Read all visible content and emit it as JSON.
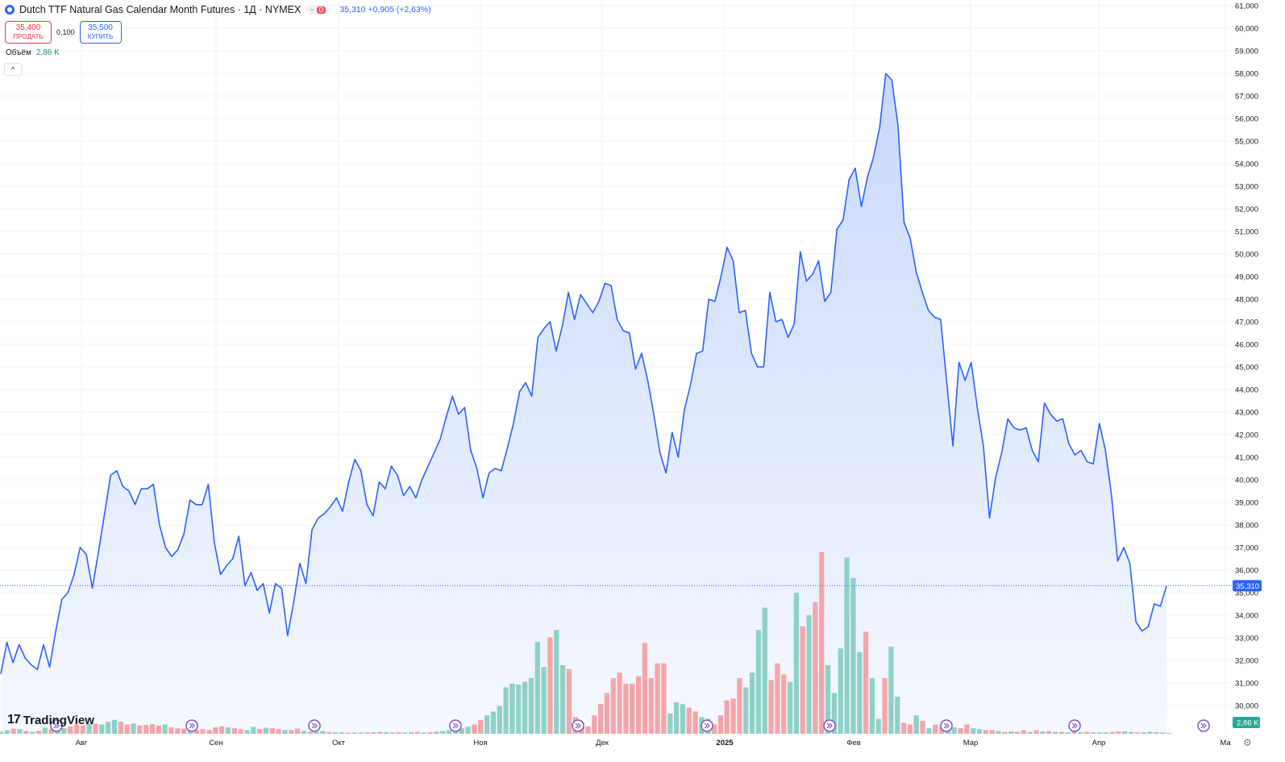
{
  "header": {
    "title": "Dutch TTF Natural Gas Calendar Month Futures · 1Д · NYMEX",
    "pill_label": "D",
    "last_info": "35,310 +0,905 (+2,63%)",
    "sell_price": "35,400",
    "sell_label": "ПРОДАТЬ",
    "spread": "0,100",
    "buy_price": "35,500",
    "buy_label": "КУПИТЬ",
    "volume_label": "Объём",
    "volume_value": "2,86 K",
    "collapse_icon": "chevron-up-icon",
    "logo_text": "TradingView",
    "logo_mark": "17"
  },
  "colors": {
    "line": "#2962ff",
    "area_top": "#c9d8fc",
    "area_bottom": "#f5f8ff",
    "vol_up": "#8fd0c6",
    "vol_down": "#f3a6aa",
    "grid": "#f0f3fa",
    "axis_text": "#131722",
    "price_label_bg": "#2962ff",
    "volume_label_bg": "#22ab94"
  },
  "chart_data": {
    "type": "area",
    "y_axis": {
      "min": 29,
      "max": 61,
      "ticks": [
        "30,000",
        "31,000",
        "32,000",
        "33,000",
        "34,000",
        "35,000",
        "36,000",
        "37,000",
        "38,000",
        "39,000",
        "40,000",
        "41,000",
        "42,000",
        "43,000",
        "44,000",
        "45,000",
        "46,000",
        "47,000",
        "48,000",
        "49,000",
        "50,000",
        "51,000",
        "52,000",
        "53,000",
        "54,000",
        "55,000",
        "56,000",
        "57,000",
        "58,000",
        "59,000",
        "60,000",
        "61,000"
      ]
    },
    "x_labels": [
      "Авг",
      "Сен",
      "Окт",
      "Ноя",
      "Дек",
      "2025",
      "Фев",
      "Мар",
      "Апр",
      "Ма"
    ],
    "current_price_label": "35,310",
    "current_volume_label": "2,86 K",
    "current_price": 35.31,
    "grid": true,
    "series": [
      {
        "values": [
          31.4,
          32.8,
          31.9,
          32.7,
          32.1,
          31.8,
          31.6,
          32.7,
          31.7,
          33.3,
          34.7,
          35.0,
          35.8,
          37.0,
          36.7,
          35.2,
          36.8,
          38.5,
          40.2,
          40.4,
          39.7,
          39.5,
          38.9,
          39.6,
          39.6,
          39.8,
          38.0,
          37.0,
          36.6,
          36.9,
          37.6,
          39.1,
          38.9,
          38.9,
          39.8,
          37.2,
          35.8,
          36.2,
          36.5,
          37.5,
          35.3,
          35.9,
          35.1,
          35.4,
          34.1,
          35.4,
          35.2,
          33.1,
          34.6,
          36.3,
          35.4,
          37.8,
          38.3,
          38.5,
          38.8,
          39.2,
          38.6,
          39.9,
          40.9,
          40.4,
          38.9,
          38.4,
          39.9,
          39.6,
          40.6,
          40.2,
          39.3,
          39.7,
          39.2,
          40.0,
          40.6,
          41.2,
          41.8,
          42.8,
          43.7,
          42.9,
          43.2,
          41.3,
          40.5,
          39.2,
          40.3,
          40.5,
          40.4,
          41.4,
          42.5,
          43.9,
          44.3,
          43.7,
          46.3,
          46.7,
          47.0,
          45.7,
          46.8,
          48.3,
          47.1,
          48.2,
          47.8,
          47.4,
          47.9,
          48.7,
          48.6,
          47.1,
          46.6,
          46.5,
          44.9,
          45.6,
          44.4,
          42.9,
          41.2,
          40.3,
          42.1,
          41.0,
          43.1,
          44.2,
          45.6,
          45.7,
          48.0,
          47.9,
          49.0,
          50.3,
          49.7,
          47.4,
          47.5,
          45.6,
          45.0,
          45.0,
          48.3,
          47.0,
          47.1,
          46.3,
          46.9,
          50.1,
          48.8,
          49.1,
          49.7,
          47.9,
          48.3,
          51.1,
          51.5,
          53.3,
          53.8,
          52.1,
          53.4,
          54.3,
          55.6,
          58.0,
          57.7,
          55.7,
          51.4,
          50.7,
          49.2,
          48.3,
          47.5,
          47.2,
          47.1,
          44.3,
          41.5,
          45.2,
          44.4,
          45.2,
          43.2,
          41.5,
          38.3,
          40.1,
          41.2,
          42.7,
          42.3,
          42.2,
          42.3,
          41.3,
          40.8,
          43.4,
          42.9,
          42.6,
          42.7,
          41.6,
          41.1,
          41.3,
          40.8,
          40.7,
          42.5,
          41.3,
          39.3,
          36.4,
          37.0,
          36.3,
          33.7,
          33.3,
          33.5,
          34.5,
          34.4,
          35.3
        ]
      }
    ],
    "volume": [
      {
        "v": 1.2,
        "d": 0
      },
      {
        "v": 2.0,
        "d": 0
      },
      {
        "v": 2.8,
        "d": 1
      },
      {
        "v": 2.5,
        "d": 0
      },
      {
        "v": 1.5,
        "d": 1
      },
      {
        "v": 1.0,
        "d": 0
      },
      {
        "v": 1.6,
        "d": 1
      },
      {
        "v": 3.3,
        "d": 0
      },
      {
        "v": 2.7,
        "d": 1
      },
      {
        "v": 2.0,
        "d": 0
      },
      {
        "v": 3.0,
        "d": 0
      },
      {
        "v": 4.0,
        "d": 1
      },
      {
        "v": 5.0,
        "d": 1
      },
      {
        "v": 4.5,
        "d": 1
      },
      {
        "v": 5.5,
        "d": 0
      },
      {
        "v": 5.5,
        "d": 1
      },
      {
        "v": 5.0,
        "d": 0
      },
      {
        "v": 6.5,
        "d": 0
      },
      {
        "v": 7.5,
        "d": 0
      },
      {
        "v": 6.5,
        "d": 1
      },
      {
        "v": 5.0,
        "d": 1
      },
      {
        "v": 5.5,
        "d": 0
      },
      {
        "v": 4.5,
        "d": 1
      },
      {
        "v": 4.8,
        "d": 1
      },
      {
        "v": 5.2,
        "d": 1
      },
      {
        "v": 4.5,
        "d": 1
      },
      {
        "v": 5.0,
        "d": 0
      },
      {
        "v": 3.5,
        "d": 1
      },
      {
        "v": 3.0,
        "d": 1
      },
      {
        "v": 2.8,
        "d": 1
      },
      {
        "v": 3.0,
        "d": 0
      },
      {
        "v": 2.0,
        "d": 1
      },
      {
        "v": 2.5,
        "d": 1
      },
      {
        "v": 2.0,
        "d": 1
      },
      {
        "v": 3.5,
        "d": 1
      },
      {
        "v": 4.0,
        "d": 1
      },
      {
        "v": 3.5,
        "d": 0
      },
      {
        "v": 3.0,
        "d": 1
      },
      {
        "v": 2.5,
        "d": 1
      },
      {
        "v": 2.0,
        "d": 0
      },
      {
        "v": 3.8,
        "d": 0
      },
      {
        "v": 2.5,
        "d": 1
      },
      {
        "v": 3.3,
        "d": 0
      },
      {
        "v": 3.0,
        "d": 1
      },
      {
        "v": 2.5,
        "d": 1
      },
      {
        "v": 2.0,
        "d": 0
      },
      {
        "v": 2.0,
        "d": 1
      },
      {
        "v": 2.8,
        "d": 1
      },
      {
        "v": 1.5,
        "d": 0
      },
      {
        "v": 1.2,
        "d": 1
      },
      {
        "v": 1.0,
        "d": 0
      },
      {
        "v": 1.5,
        "d": 0
      },
      {
        "v": 1.0,
        "d": 1
      },
      {
        "v": 0.8,
        "d": 0
      },
      {
        "v": 0.8,
        "d": 0
      },
      {
        "v": 0.6,
        "d": 1
      },
      {
        "v": 0.7,
        "d": 0
      },
      {
        "v": 0.7,
        "d": 0
      },
      {
        "v": 0.8,
        "d": 1
      },
      {
        "v": 0.8,
        "d": 0
      },
      {
        "v": 1.0,
        "d": 1
      },
      {
        "v": 0.9,
        "d": 0
      },
      {
        "v": 0.7,
        "d": 0
      },
      {
        "v": 0.8,
        "d": 1
      },
      {
        "v": 0.7,
        "d": 0
      },
      {
        "v": 0.9,
        "d": 1
      },
      {
        "v": 1.0,
        "d": 1
      },
      {
        "v": 0.7,
        "d": 0
      },
      {
        "v": 0.8,
        "d": 1
      },
      {
        "v": 1.2,
        "d": 0
      },
      {
        "v": 1.4,
        "d": 0
      },
      {
        "v": 2.0,
        "d": 0
      },
      {
        "v": 2.4,
        "d": 0
      },
      {
        "v": 3.0,
        "d": 0
      },
      {
        "v": 3.8,
        "d": 0
      },
      {
        "v": 5.0,
        "d": 1
      },
      {
        "v": 7.5,
        "d": 1
      },
      {
        "v": 10.0,
        "d": 0
      },
      {
        "v": 12.0,
        "d": 0
      },
      {
        "v": 15.0,
        "d": 0
      },
      {
        "v": 25.0,
        "d": 0
      },
      {
        "v": 27.0,
        "d": 0
      },
      {
        "v": 26.5,
        "d": 0
      },
      {
        "v": 28.0,
        "d": 0
      },
      {
        "v": 30.0,
        "d": 0
      },
      {
        "v": 49.5,
        "d": 0
      },
      {
        "v": 36.0,
        "d": 0
      },
      {
        "v": 52.0,
        "d": 1
      },
      {
        "v": 56.0,
        "d": 0
      },
      {
        "v": 37.0,
        "d": 0
      },
      {
        "v": 35.0,
        "d": 1
      },
      {
        "v": 9.0,
        "d": 1
      },
      {
        "v": 6.0,
        "d": 1
      },
      {
        "v": 4.0,
        "d": 1
      },
      {
        "v": 10.0,
        "d": 1
      },
      {
        "v": 16.0,
        "d": 1
      },
      {
        "v": 22.0,
        "d": 1
      },
      {
        "v": 30.0,
        "d": 1
      },
      {
        "v": 33.0,
        "d": 1
      },
      {
        "v": 27.0,
        "d": 1
      },
      {
        "v": 27.0,
        "d": 1
      },
      {
        "v": 31.0,
        "d": 1
      },
      {
        "v": 49.0,
        "d": 1
      },
      {
        "v": 30.0,
        "d": 1
      },
      {
        "v": 38.0,
        "d": 1
      },
      {
        "v": 38.0,
        "d": 1
      },
      {
        "v": 11.0,
        "d": 0
      },
      {
        "v": 17.0,
        "d": 0
      },
      {
        "v": 16.0,
        "d": 0
      },
      {
        "v": 14.0,
        "d": 1
      },
      {
        "v": 12.0,
        "d": 1
      },
      {
        "v": 9.0,
        "d": 0
      },
      {
        "v": 8.0,
        "d": 0
      },
      {
        "v": 5.0,
        "d": 1
      },
      {
        "v": 10.0,
        "d": 1
      },
      {
        "v": 18.0,
        "d": 1
      },
      {
        "v": 19.0,
        "d": 1
      },
      {
        "v": 30.0,
        "d": 1
      },
      {
        "v": 25.0,
        "d": 0
      },
      {
        "v": 33.0,
        "d": 0
      },
      {
        "v": 56.0,
        "d": 0
      },
      {
        "v": 68.0,
        "d": 0
      },
      {
        "v": 29.0,
        "d": 1
      },
      {
        "v": 38.0,
        "d": 1
      },
      {
        "v": 32.0,
        "d": 1
      },
      {
        "v": 28.0,
        "d": 0
      },
      {
        "v": 76.0,
        "d": 0
      },
      {
        "v": 58.0,
        "d": 1
      },
      {
        "v": 64.0,
        "d": 0
      },
      {
        "v": 71.0,
        "d": 1
      },
      {
        "v": 98.0,
        "d": 1
      },
      {
        "v": 37.0,
        "d": 0
      },
      {
        "v": 22.0,
        "d": 0
      },
      {
        "v": 46.0,
        "d": 0
      },
      {
        "v": 95.0,
        "d": 0
      },
      {
        "v": 84.0,
        "d": 0
      },
      {
        "v": 44.0,
        "d": 0
      },
      {
        "v": 55.0,
        "d": 1
      },
      {
        "v": 30.0,
        "d": 0
      },
      {
        "v": 8.0,
        "d": 0
      },
      {
        "v": 30.0,
        "d": 1
      },
      {
        "v": 47.0,
        "d": 0
      },
      {
        "v": 20.0,
        "d": 0
      },
      {
        "v": 6.0,
        "d": 1
      },
      {
        "v": 5.0,
        "d": 1
      },
      {
        "v": 10.0,
        "d": 0
      },
      {
        "v": 7.0,
        "d": 1
      },
      {
        "v": 3.0,
        "d": 0
      },
      {
        "v": 5.0,
        "d": 1
      },
      {
        "v": 4.0,
        "d": 1
      },
      {
        "v": 4.0,
        "d": 0
      },
      {
        "v": 3.5,
        "d": 0
      },
      {
        "v": 3.0,
        "d": 1
      },
      {
        "v": 5.0,
        "d": 1
      },
      {
        "v": 3.0,
        "d": 0
      },
      {
        "v": 2.5,
        "d": 0
      },
      {
        "v": 2.0,
        "d": 1
      },
      {
        "v": 2.0,
        "d": 1
      },
      {
        "v": 1.5,
        "d": 0
      },
      {
        "v": 1.0,
        "d": 1
      },
      {
        "v": 1.2,
        "d": 0
      },
      {
        "v": 1.0,
        "d": 1
      },
      {
        "v": 2.0,
        "d": 1
      },
      {
        "v": 1.0,
        "d": 0
      },
      {
        "v": 2.0,
        "d": 1
      },
      {
        "v": 1.2,
        "d": 0
      },
      {
        "v": 1.5,
        "d": 1
      },
      {
        "v": 1.0,
        "d": 0
      },
      {
        "v": 1.0,
        "d": 1
      },
      {
        "v": 0.8,
        "d": 0
      },
      {
        "v": 1.0,
        "d": 1
      },
      {
        "v": 0.8,
        "d": 0
      },
      {
        "v": 1.0,
        "d": 1
      },
      {
        "v": 0.8,
        "d": 1
      },
      {
        "v": 0.8,
        "d": 0
      },
      {
        "v": 0.8,
        "d": 0
      },
      {
        "v": 1.0,
        "d": 1
      },
      {
        "v": 1.2,
        "d": 1
      },
      {
        "v": 1.3,
        "d": 0
      },
      {
        "v": 1.0,
        "d": 1
      },
      {
        "v": 0.7,
        "d": 1
      },
      {
        "v": 0.8,
        "d": 1
      },
      {
        "v": 1.1,
        "d": 0
      },
      {
        "v": 0.9,
        "d": 1
      },
      {
        "v": 0.7,
        "d": 0
      },
      {
        "v": 0.5,
        "d": 1
      }
    ],
    "events": [
      "event-marker-icon",
      "event-marker-icon",
      "event-marker-icon",
      "event-marker-icon",
      "event-marker-icon",
      "event-marker-icon",
      "event-marker-icon",
      "event-marker-icon",
      "event-marker-icon",
      "event-marker-icon"
    ]
  }
}
